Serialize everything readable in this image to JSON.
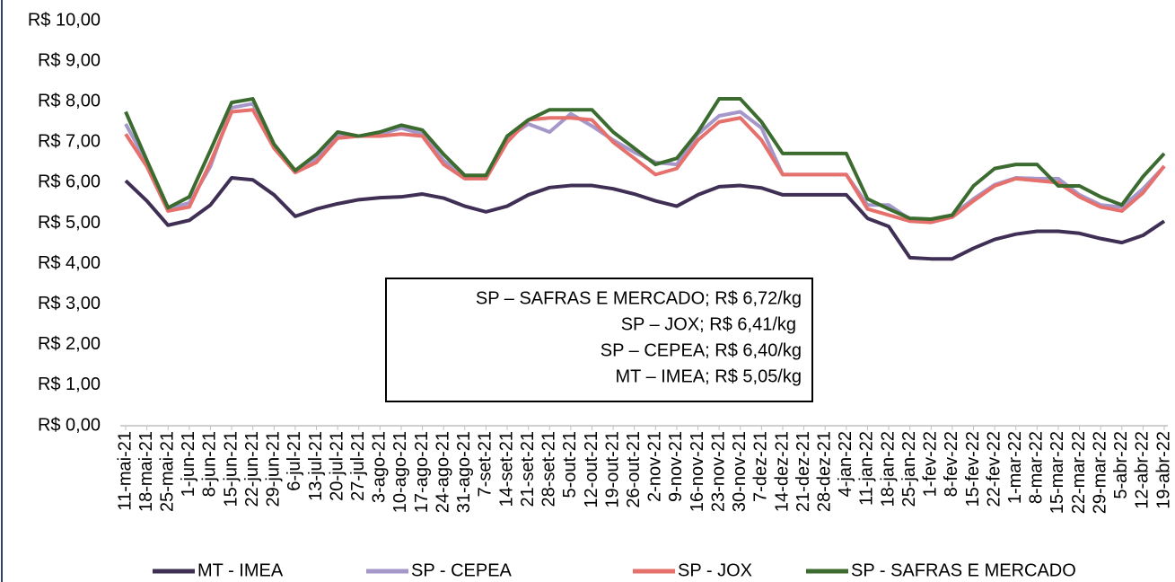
{
  "chart_data": {
    "type": "line",
    "categories": [
      "11-mai-21",
      "18-mai-21",
      "25-mai-21",
      "1-jun-21",
      "8-jun-21",
      "15-jun-21",
      "22-jun-21",
      "29-jun-21",
      "6-jul-21",
      "13-jul-21",
      "20-jul-21",
      "27-jul-21",
      "3-ago-21",
      "10-ago-21",
      "17-ago-21",
      "24-ago-21",
      "31-ago-21",
      "7-set-21",
      "14-set-21",
      "21-set-21",
      "28-set-21",
      "5-out-21",
      "12-out-21",
      "19-out-21",
      "26-out-21",
      "2-nov-21",
      "9-nov-21",
      "16-nov-21",
      "23-nov-21",
      "30-nov-21",
      "7-dez-21",
      "14-dez-21",
      "21-dez-21",
      "28-dez-21",
      "4-jan-22",
      "11-jan-22",
      "18-jan-22",
      "25-jan-22",
      "1-fev-22",
      "8-fev-22",
      "15-fev-22",
      "22-fev-22",
      "1-mar-22",
      "8-mar-22",
      "15-mar-22",
      "22-mar-22",
      "29-mar-22",
      "5-abr-22",
      "12-abr-22",
      "19-abr-22"
    ],
    "series": [
      {
        "name": "MT - IMEA",
        "color": "#3f2f55",
        "values": [
          6.05,
          5.55,
          4.95,
          5.07,
          5.45,
          6.12,
          6.07,
          5.7,
          5.17,
          5.35,
          5.48,
          5.58,
          5.63,
          5.65,
          5.72,
          5.62,
          5.42,
          5.28,
          5.42,
          5.7,
          5.88,
          5.93,
          5.93,
          5.85,
          5.72,
          5.55,
          5.42,
          5.7,
          5.9,
          5.93,
          5.87,
          5.7,
          5.7,
          5.7,
          5.7,
          5.12,
          4.92,
          4.15,
          4.12,
          4.12,
          4.38,
          4.6,
          4.73,
          4.8,
          4.8,
          4.75,
          4.62,
          4.52,
          4.7,
          5.05
        ]
      },
      {
        "name": "SP - CEPEA",
        "color": "#a597c9",
        "values": [
          7.45,
          6.5,
          5.35,
          5.5,
          6.4,
          7.85,
          7.95,
          6.9,
          6.3,
          6.6,
          7.15,
          7.15,
          7.2,
          7.35,
          7.2,
          6.55,
          6.15,
          6.15,
          7.1,
          7.45,
          7.25,
          7.7,
          7.4,
          7.05,
          6.75,
          6.5,
          6.45,
          7.2,
          7.65,
          7.75,
          7.35,
          6.2,
          6.2,
          6.2,
          6.2,
          5.45,
          5.45,
          5.1,
          5.05,
          5.2,
          5.6,
          5.95,
          6.12,
          6.1,
          6.1,
          5.7,
          5.45,
          5.4,
          5.85,
          6.4
        ]
      },
      {
        "name": "SP - JOX",
        "color": "#e5706c",
        "values": [
          7.2,
          6.4,
          5.3,
          5.4,
          6.5,
          7.75,
          7.8,
          6.85,
          6.25,
          6.5,
          7.1,
          7.15,
          7.15,
          7.2,
          7.15,
          6.45,
          6.1,
          6.1,
          7.0,
          7.55,
          7.6,
          7.6,
          7.55,
          7.0,
          6.6,
          6.2,
          6.35,
          7.05,
          7.5,
          7.6,
          7.05,
          6.2,
          6.2,
          6.2,
          6.2,
          5.35,
          5.2,
          5.05,
          5.02,
          5.15,
          5.55,
          5.92,
          6.1,
          6.05,
          6.0,
          5.65,
          5.4,
          5.3,
          5.75,
          6.41
        ]
      },
      {
        "name": "SP - SAFRAS E MERCADO",
        "color": "#3c6b2f",
        "values": [
          7.75,
          6.55,
          5.38,
          5.65,
          6.8,
          7.98,
          8.07,
          6.95,
          6.3,
          6.7,
          7.25,
          7.15,
          7.25,
          7.42,
          7.3,
          6.7,
          6.18,
          6.18,
          7.15,
          7.55,
          7.8,
          7.8,
          7.8,
          7.25,
          6.85,
          6.45,
          6.6,
          7.25,
          8.07,
          8.07,
          7.5,
          6.72,
          6.72,
          6.72,
          6.72,
          5.6,
          5.35,
          5.12,
          5.1,
          5.2,
          5.92,
          6.35,
          6.45,
          6.45,
          5.92,
          5.92,
          5.65,
          5.45,
          6.15,
          6.72
        ]
      }
    ],
    "ylim": [
      0,
      10
    ],
    "yticks": [
      {
        "value": 0,
        "label": "R$ 0,00"
      },
      {
        "value": 1,
        "label": "R$ 1,00"
      },
      {
        "value": 2,
        "label": "R$ 2,00"
      },
      {
        "value": 3,
        "label": "R$ 3,00"
      },
      {
        "value": 4,
        "label": "R$ 4,00"
      },
      {
        "value": 5,
        "label": "R$ 5,00"
      },
      {
        "value": 6,
        "label": "R$ 6,00"
      },
      {
        "value": 7,
        "label": "R$ 7,00"
      },
      {
        "value": 8,
        "label": "R$ 8,00"
      },
      {
        "value": 9,
        "label": "R$ 9,00"
      },
      {
        "value": 10,
        "label": "R$ 10,00"
      }
    ],
    "grid": false,
    "legend": "bottom",
    "annotations": [
      "SP – SAFRAS E MERCADO; R$ 6,72/kg",
      "SP – JOX; R$ 6,41/kg",
      "SP – CEPEA; R$ 6,40/kg",
      "MT – IMEA; R$ 5,05/kg"
    ]
  }
}
